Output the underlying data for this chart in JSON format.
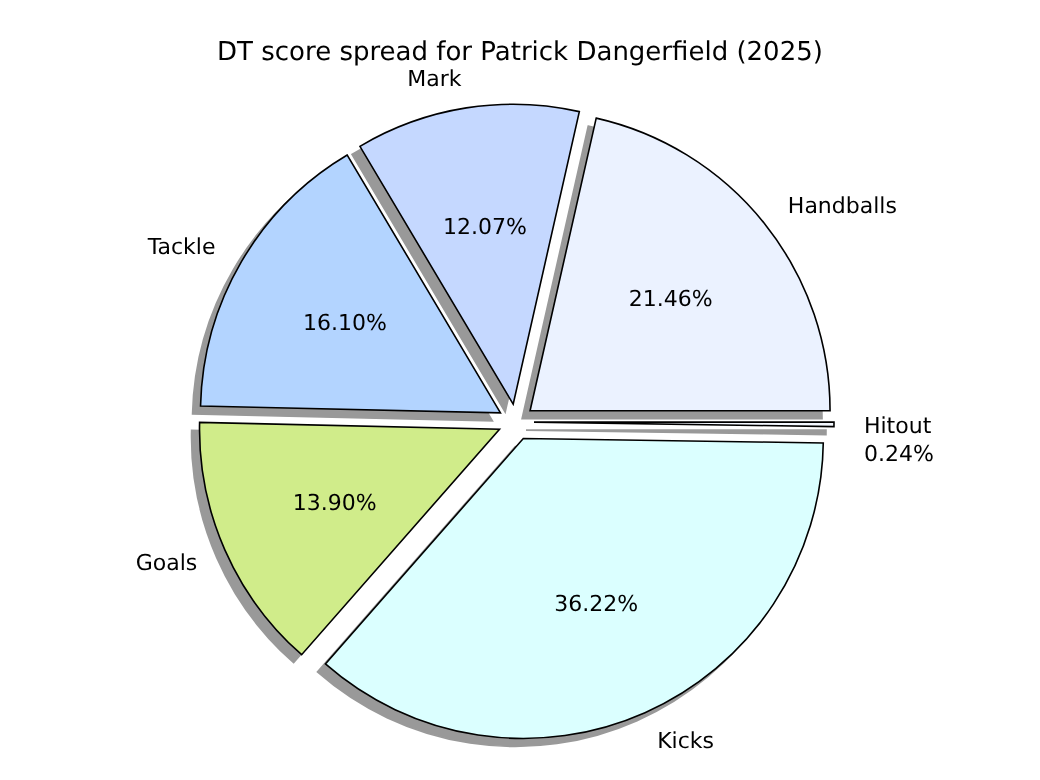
{
  "chart_data": {
    "type": "pie",
    "title": "DT score spread for Patrick Dangerfield (2025)",
    "categories": [
      "Handballs",
      "Mark",
      "Tackle",
      "Goals",
      "Kicks",
      "Hitout"
    ],
    "values": [
      21.46,
      12.07,
      16.1,
      13.9,
      36.22,
      0.24
    ],
    "value_labels": [
      "21.46%",
      "12.07%",
      "16.10%",
      "13.90%",
      "36.22%",
      "0.24%"
    ],
    "colors": [
      "#ebf2ff",
      "#c5d8ff",
      "#b3d4ff",
      "#d0ec8a",
      "#dbffff",
      "#f4f8ff"
    ]
  }
}
